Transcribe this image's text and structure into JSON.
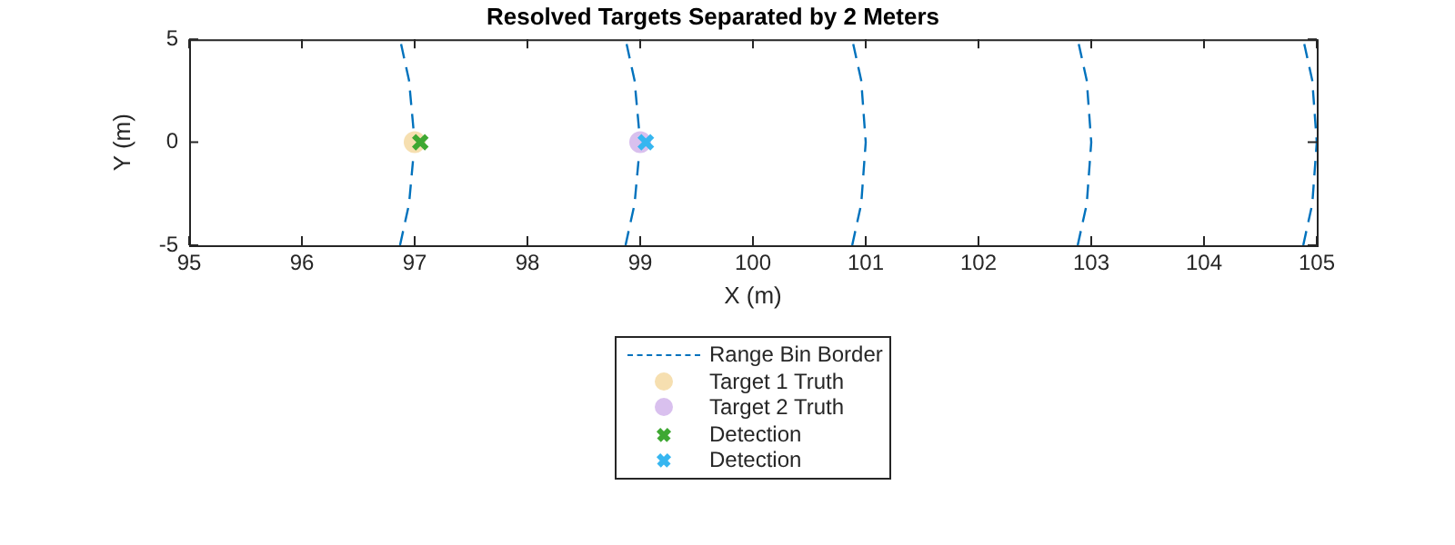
{
  "chart_data": {
    "type": "scatter",
    "title": "Resolved Targets Separated by 2 Meters",
    "xlabel": "X (m)",
    "ylabel": "Y (m)",
    "xlim": [
      95,
      105
    ],
    "ylim": [
      -5,
      5
    ],
    "xticks": [
      95,
      96,
      97,
      98,
      99,
      100,
      101,
      102,
      103,
      104,
      105
    ],
    "yticks": [
      -5,
      0,
      5
    ],
    "grid": false,
    "legend": "bottom",
    "series": [
      {
        "name": "Range Bin Border",
        "type": "line",
        "color": "#0072bd",
        "line_style": "dashed",
        "marker": "none",
        "x": [
          96.87,
          96.95,
          97,
          96.95,
          96.87
        ],
        "values": [
          -5,
          -3,
          0,
          3,
          5
        ]
      },
      {
        "type": "line",
        "color": "#0072bd",
        "line_style": "dashed",
        "marker": "none",
        "x": [
          98.87,
          98.95,
          99,
          98.95,
          98.87
        ],
        "values": [
          -5,
          -3,
          0,
          3,
          5
        ]
      },
      {
        "type": "line",
        "color": "#0072bd",
        "line_style": "dashed",
        "marker": "none",
        "x": [
          100.88,
          100.96,
          101,
          100.96,
          100.88
        ],
        "values": [
          -5,
          -3,
          0,
          3,
          5
        ]
      },
      {
        "type": "line",
        "color": "#0072bd",
        "line_style": "dashed",
        "marker": "none",
        "x": [
          102.88,
          102.96,
          103,
          102.96,
          102.88
        ],
        "values": [
          -5,
          -3,
          0,
          3,
          5
        ]
      },
      {
        "type": "line",
        "color": "#0072bd",
        "line_style": "dashed",
        "marker": "none",
        "x": [
          104.88,
          104.96,
          105,
          104.96,
          104.88
        ],
        "values": [
          -5,
          -3,
          0,
          3,
          5
        ]
      },
      {
        "name": "Target 1 Truth",
        "type": "scatter",
        "color": "#f6dfb0",
        "marker": "circle",
        "x": [
          97
        ],
        "values": [
          0
        ]
      },
      {
        "name": "Target 2 Truth",
        "type": "scatter",
        "color": "#d9c0ee",
        "marker": "circle",
        "x": [
          99
        ],
        "values": [
          0
        ]
      },
      {
        "name": "Detection",
        "type": "scatter",
        "color": "#3ea832",
        "marker": "cross",
        "x": [
          97.05
        ],
        "values": [
          0
        ]
      },
      {
        "name": "Detection",
        "type": "scatter",
        "color": "#36b6f0",
        "marker": "cross",
        "x": [
          99.05
        ],
        "values": [
          0
        ]
      }
    ]
  }
}
